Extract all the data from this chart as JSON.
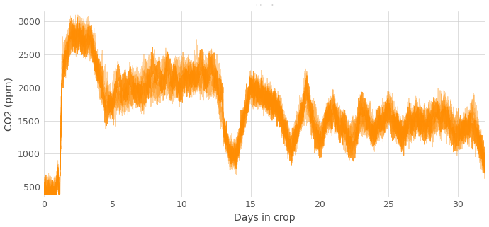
{
  "xlabel": "Days in crop",
  "ylabel": "CO2 (ppm)",
  "line_color": "#FF8C00",
  "background_color": "#ffffff",
  "xlim": [
    0,
    32
  ],
  "ylim": [
    350,
    3150
  ],
  "yticks": [
    500,
    1000,
    1500,
    2000,
    2500,
    3000
  ],
  "xticks": [
    0,
    5,
    10,
    15,
    20,
    25,
    30
  ],
  "grid_color": "#cccccc",
  "linewidth": 0.6,
  "alpha": 0.7,
  "title_text": "' '    \"",
  "title_fontsize": 7,
  "title_color": "#bbbbbb",
  "seed": 17
}
